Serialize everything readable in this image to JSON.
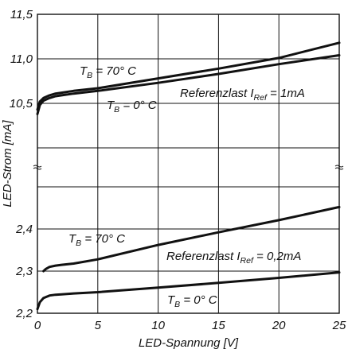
{
  "chart_data": {
    "type": "line",
    "xlabel": "LED-Spannung [V]",
    "ylabel": "LED-Strom [mA]",
    "xlim": [
      0,
      25
    ],
    "x_ticks": [
      "0",
      "5",
      "10",
      "15",
      "20",
      "25"
    ],
    "y_ticks_upper": [
      "10,5",
      "11,0",
      "11,5"
    ],
    "y_ticks_lower": [
      "2,2",
      "2,3",
      "2,4"
    ],
    "y_axis_break": true,
    "grid": true,
    "panels": [
      {
        "name": "upper",
        "ylim": [
          10.0,
          11.5
        ],
        "annotation": {
          "main": "Referenzlast I",
          "sub": "Ref",
          "rest": " = 1mA"
        },
        "series": [
          {
            "label_main": "T",
            "label_sub": "B",
            "label_rest": " = 70° C",
            "x": [
              0,
              0.2,
              0.5,
              1,
              1.5,
              2,
              3,
              5,
              10,
              15,
              20,
              25
            ],
            "y": [
              10.43,
              10.52,
              10.56,
              10.59,
              10.61,
              10.62,
              10.64,
              10.67,
              10.78,
              10.89,
              11.01,
              11.18
            ]
          },
          {
            "label_main": "T",
            "label_sub": "B",
            "label_rest": " = 0° C",
            "x": [
              0,
              0.2,
              0.5,
              1,
              1.5,
              2,
              3,
              5,
              10,
              15,
              20,
              25
            ],
            "y": [
              10.38,
              10.48,
              10.53,
              10.56,
              10.58,
              10.59,
              10.61,
              10.64,
              10.73,
              10.83,
              10.94,
              11.04
            ]
          }
        ]
      },
      {
        "name": "lower",
        "ylim": [
          2.2,
          2.5
        ],
        "annotation": {
          "main": "Referenzlast I",
          "sub": "Ref",
          "rest": " = 0,2mA"
        },
        "series": [
          {
            "label_main": "T",
            "label_sub": "B",
            "label_rest": " = 70° C",
            "x": [
              0.5,
              0.7,
              1,
              1.5,
              2,
              3,
              5,
              10,
              15,
              20,
              25
            ],
            "y": [
              2.3,
              2.305,
              2.31,
              2.313,
              2.315,
              2.318,
              2.328,
              2.362,
              2.392,
              2.421,
              2.452
            ]
          },
          {
            "label_main": "T",
            "label_sub": "B",
            "label_rest": " = 0° C",
            "x": [
              0,
              0.2,
              0.5,
              1,
              1.5,
              2,
              3,
              5,
              10,
              15,
              20,
              25
            ],
            "y": [
              2.21,
              2.226,
              2.236,
              2.242,
              2.244,
              2.245,
              2.247,
              2.25,
              2.261,
              2.272,
              2.284,
              2.297
            ]
          }
        ]
      }
    ]
  }
}
